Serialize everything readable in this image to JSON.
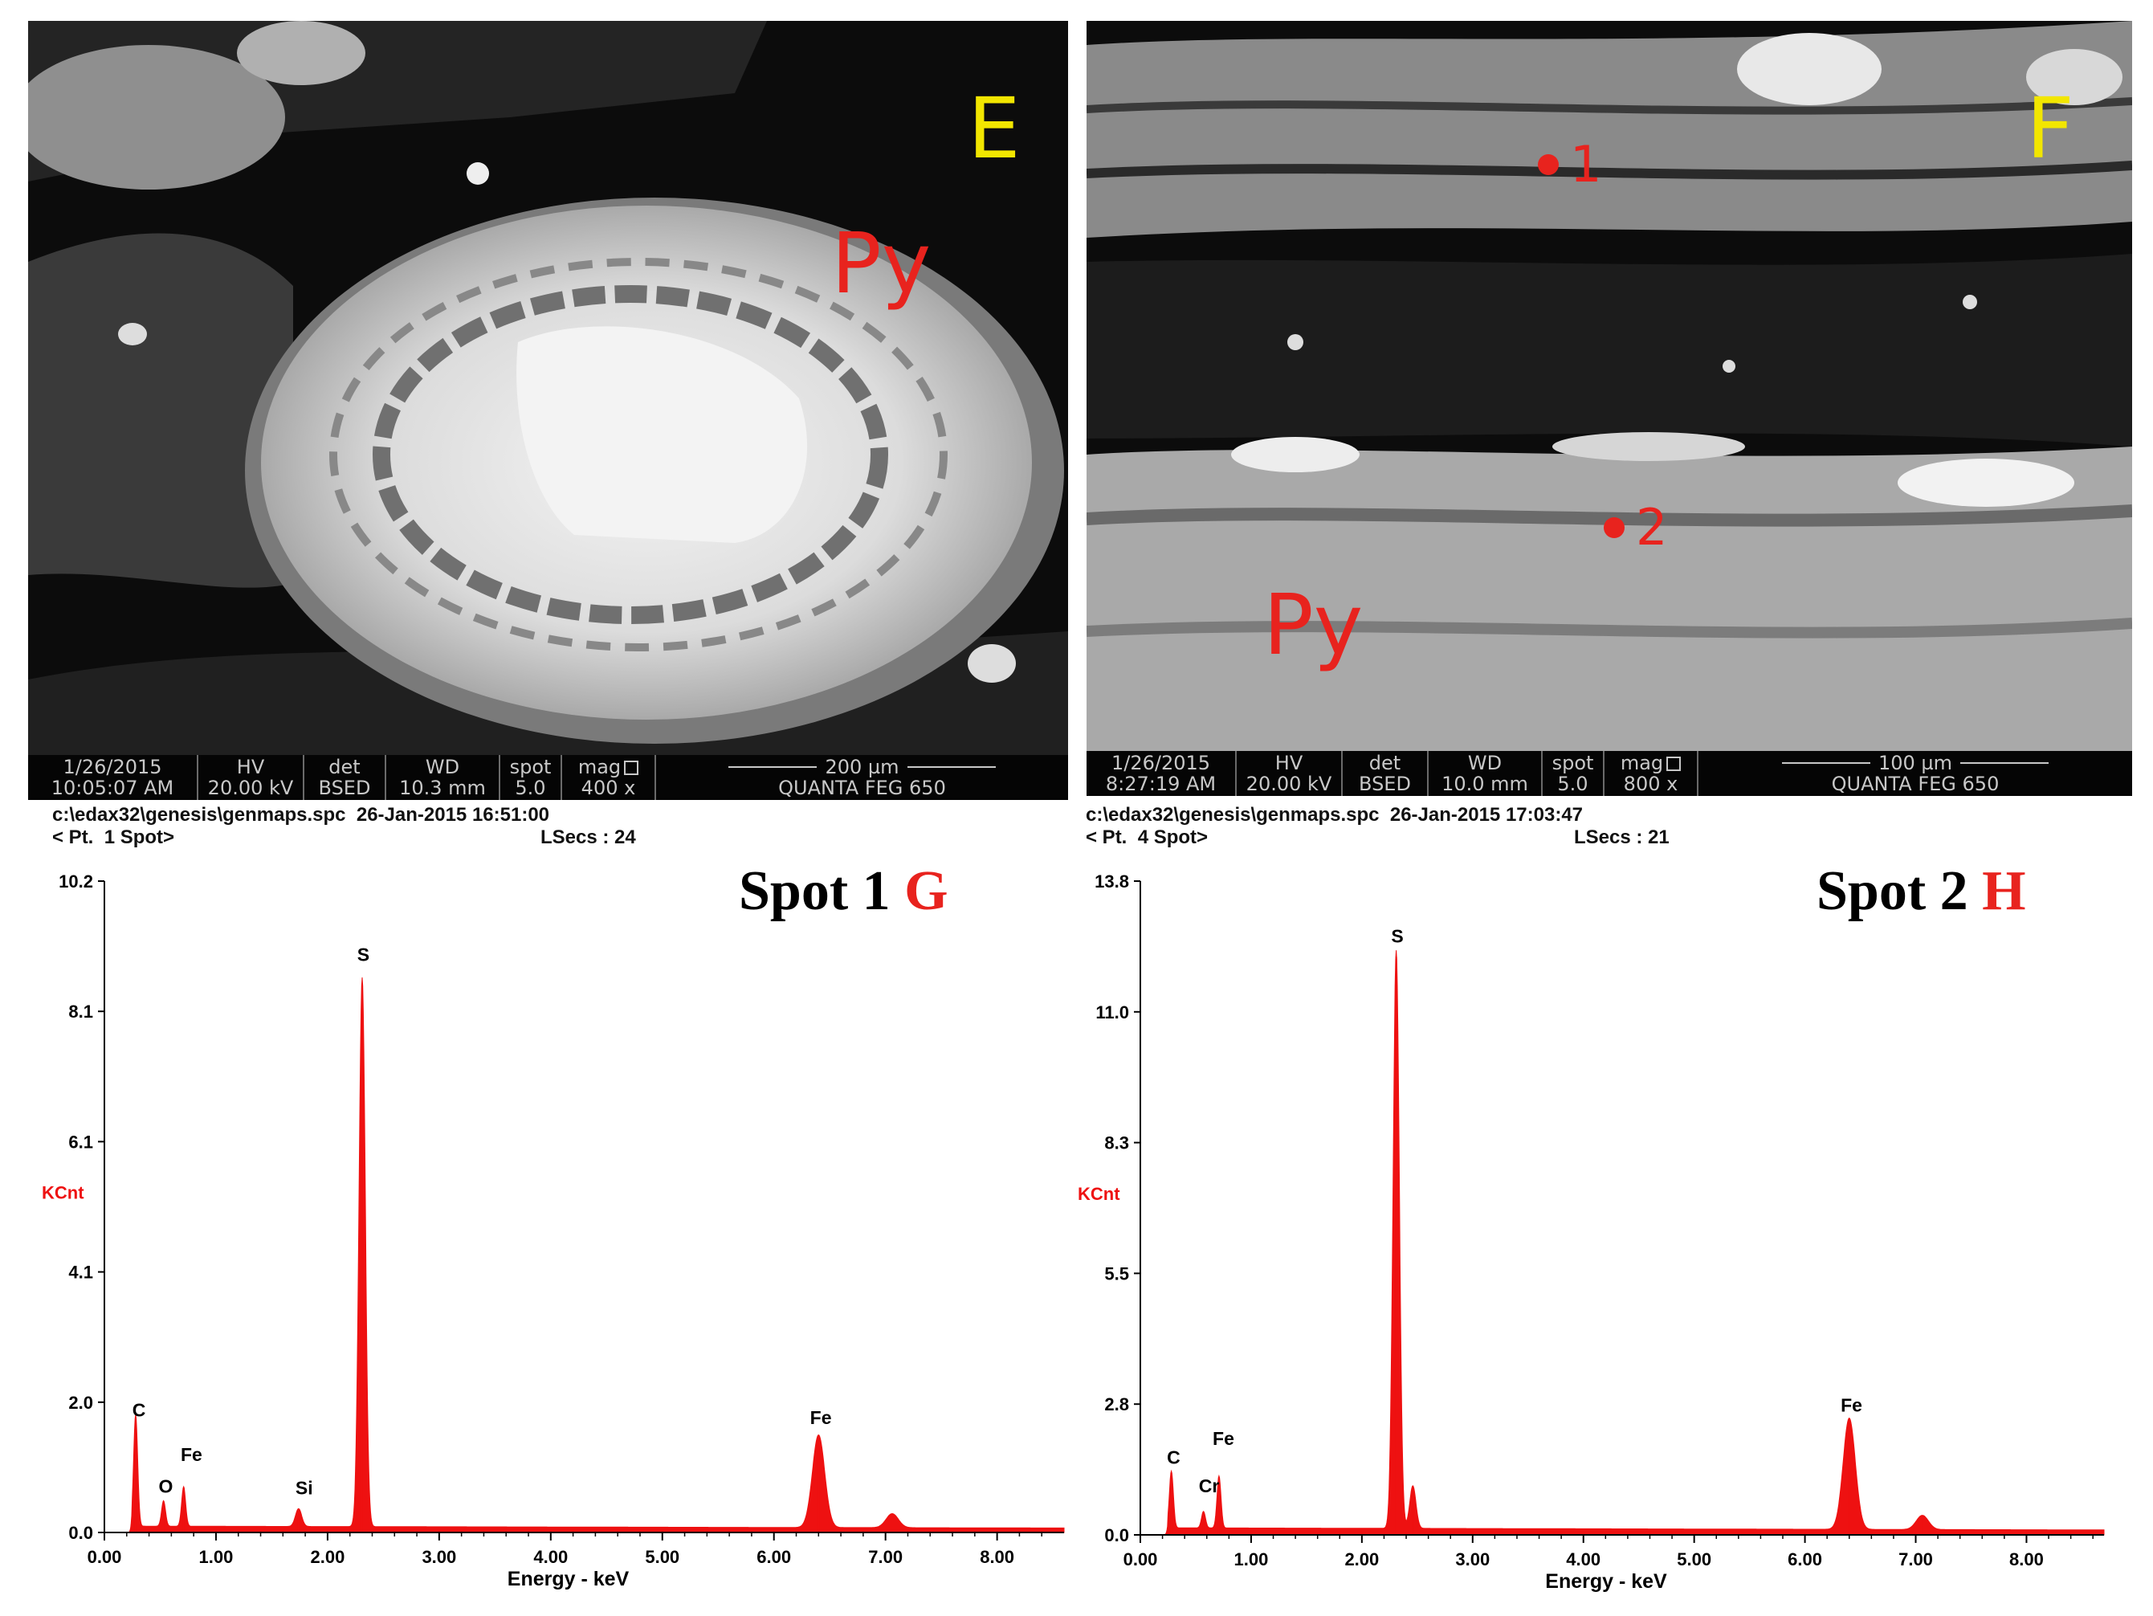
{
  "panels": [
    {
      "letter": "E",
      "mineral_label": "Py",
      "databar": {
        "date": "1/26/2015",
        "time": "10:05:07 AM",
        "hv_label": "HV",
        "hv": "20.00 kV",
        "det_label": "det",
        "det": "BSED",
        "wd_label": "WD",
        "wd": "10.3 mm",
        "spot_label": "spot",
        "spot": "5.0",
        "mag_label": "mag",
        "mag": "400 x",
        "scale": "200 µm",
        "instrument": "QUANTA FEG 650"
      }
    },
    {
      "letter": "F",
      "mineral_label": "Py",
      "markers": [
        "1",
        "2"
      ],
      "databar": {
        "date": "1/26/2015",
        "time": "8:27:19 AM",
        "hv_label": "HV",
        "hv": "20.00 kV",
        "det_label": "det",
        "det": "BSED",
        "wd_label": "WD",
        "wd": "10.0 mm",
        "spot_label": "spot",
        "spot": "5.0",
        "mag_label": "mag",
        "mag": "800 x",
        "scale": "100 µm",
        "instrument": "QUANTA FEG 650"
      }
    }
  ],
  "spectra_info": [
    {
      "line1": "c:\\edax32\\genesis\\genmaps.spc  26-Jan-2015 16:51:00",
      "line2a": "< Pt.  1 Spot>",
      "line2b": "LSecs : 24",
      "title": "Spot 1",
      "letter": "G"
    },
    {
      "line1": "c:\\edax32\\genesis\\genmaps.spc  26-Jan-2015 17:03:47",
      "line2a": "< Pt.  4 Spot>",
      "line2b": "LSecs : 21",
      "title": "Spot 2",
      "letter": "H"
    }
  ],
  "colors": {
    "spectrum": "#ee1111",
    "label_red": "#e8231e",
    "letter_yellow": "#f2e600"
  },
  "chart_data": [
    {
      "type": "area",
      "ylabel": "KCnt",
      "xlabel": "Energy - keV",
      "ylim": [
        0,
        10.2
      ],
      "xlim": [
        0,
        8.6
      ],
      "yticks": [
        "0.0",
        "2.0",
        "4.1",
        "6.1",
        "8.1",
        "10.2"
      ],
      "ytick_values": [
        0.0,
        2.04,
        4.08,
        6.12,
        8.16,
        10.2
      ],
      "xticks": [
        "0.00",
        "1.00",
        "2.00",
        "3.00",
        "4.00",
        "5.00",
        "6.00",
        "7.00",
        "8.00"
      ],
      "background": 0.1,
      "peaks": [
        {
          "element": "C",
          "energy": 0.28,
          "height": 1.75
        },
        {
          "element": "O",
          "energy": 0.53,
          "height": 0.4
        },
        {
          "element": "Fe",
          "energy": 0.71,
          "height": 0.62
        },
        {
          "element": "Si",
          "energy": 1.74,
          "height": 0.28
        },
        {
          "element": "S",
          "energy": 2.31,
          "height": 8.6
        },
        {
          "element": "Fe",
          "energy": 6.4,
          "height": 1.45
        },
        {
          "element": "",
          "energy": 7.06,
          "height": 0.22
        }
      ],
      "labels": [
        {
          "text": "C",
          "energy": 0.31,
          "y": 1.82
        },
        {
          "text": "O",
          "energy": 0.55,
          "y": 0.62
        },
        {
          "text": "Fe",
          "energy": 0.78,
          "y": 1.12
        },
        {
          "text": "Si",
          "energy": 1.79,
          "y": 0.6
        },
        {
          "text": "S",
          "energy": 2.32,
          "y": 8.95
        },
        {
          "text": "Fe",
          "energy": 6.42,
          "y": 1.7
        }
      ]
    },
    {
      "type": "area",
      "ylabel": "KCnt",
      "xlabel": "Energy - keV",
      "ylim": [
        0,
        13.8
      ],
      "xlim": [
        0,
        8.7
      ],
      "yticks": [
        "0.0",
        "2.8",
        "5.5",
        "8.3",
        "11.0",
        "13.8"
      ],
      "ytick_values": [
        0.0,
        2.76,
        5.52,
        8.28,
        11.04,
        13.8
      ],
      "xticks": [
        "0.00",
        "1.00",
        "2.00",
        "3.00",
        "4.00",
        "5.00",
        "6.00",
        "7.00",
        "8.00"
      ],
      "background": 0.15,
      "peaks": [
        {
          "element": "C",
          "energy": 0.28,
          "height": 1.2
        },
        {
          "element": "Cr",
          "energy": 0.57,
          "height": 0.35
        },
        {
          "element": "Fe",
          "energy": 0.71,
          "height": 1.1
        },
        {
          "element": "S",
          "energy": 2.31,
          "height": 12.2
        },
        {
          "element": "S",
          "energy": 2.46,
          "height": 0.9
        },
        {
          "element": "Fe",
          "energy": 6.4,
          "height": 2.35
        },
        {
          "element": "",
          "energy": 7.06,
          "height": 0.3
        }
      ],
      "labels": [
        {
          "text": "C",
          "energy": 0.3,
          "y": 1.5
        },
        {
          "text": "Cr",
          "energy": 0.62,
          "y": 0.9
        },
        {
          "text": "Fe",
          "energy": 0.75,
          "y": 1.9
        },
        {
          "text": "S",
          "energy": 2.32,
          "y": 12.5
        },
        {
          "text": "Fe",
          "energy": 6.42,
          "y": 2.6
        }
      ]
    }
  ]
}
